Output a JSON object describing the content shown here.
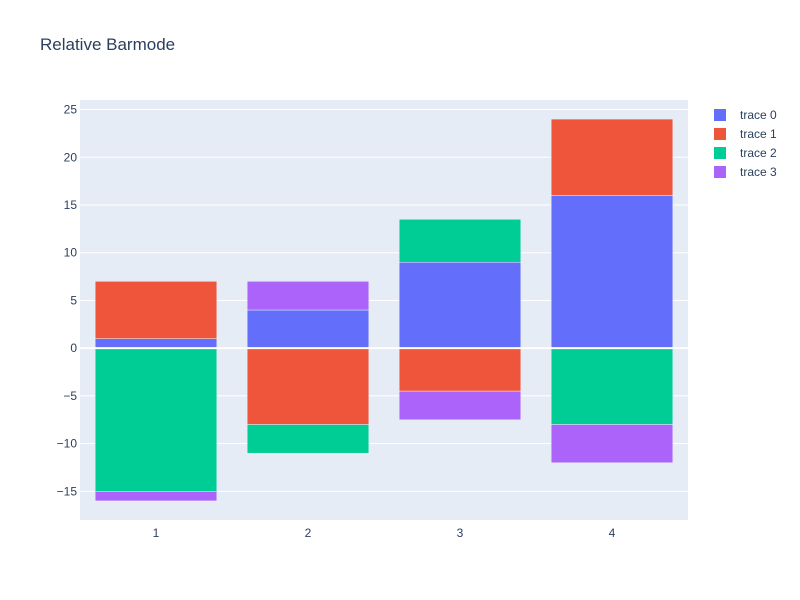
{
  "chart_data": {
    "type": "bar",
    "barmode": "relative",
    "title": "Relative Barmode",
    "xlabel": "",
    "ylabel": "",
    "categories": [
      "1",
      "2",
      "3",
      "4"
    ],
    "ylim": [
      -18,
      26
    ],
    "yticks": [
      -15,
      -10,
      -5,
      0,
      5,
      10,
      15,
      20,
      25
    ],
    "ytick_labels": [
      "−15",
      "−10",
      "−5",
      "0",
      "5",
      "10",
      "15",
      "20",
      "25"
    ],
    "grid": true,
    "legend_position": "top-right",
    "series": [
      {
        "name": "trace 0",
        "values": [
          1,
          4,
          9,
          16
        ],
        "color": "#636efa"
      },
      {
        "name": "trace 1",
        "values": [
          6,
          -8,
          -4.5,
          8
        ],
        "color": "#ef553b"
      },
      {
        "name": "trace 2",
        "values": [
          -15,
          -3,
          4.5,
          -8
        ],
        "color": "#00cc96"
      },
      {
        "name": "trace 3",
        "values": [
          -1,
          3,
          -3,
          -4
        ],
        "color": "#ab63fa"
      }
    ],
    "colors": {
      "plot_bg": "#e5ecf6",
      "grid": "#ffffff",
      "text": "#2a3f5f"
    }
  }
}
